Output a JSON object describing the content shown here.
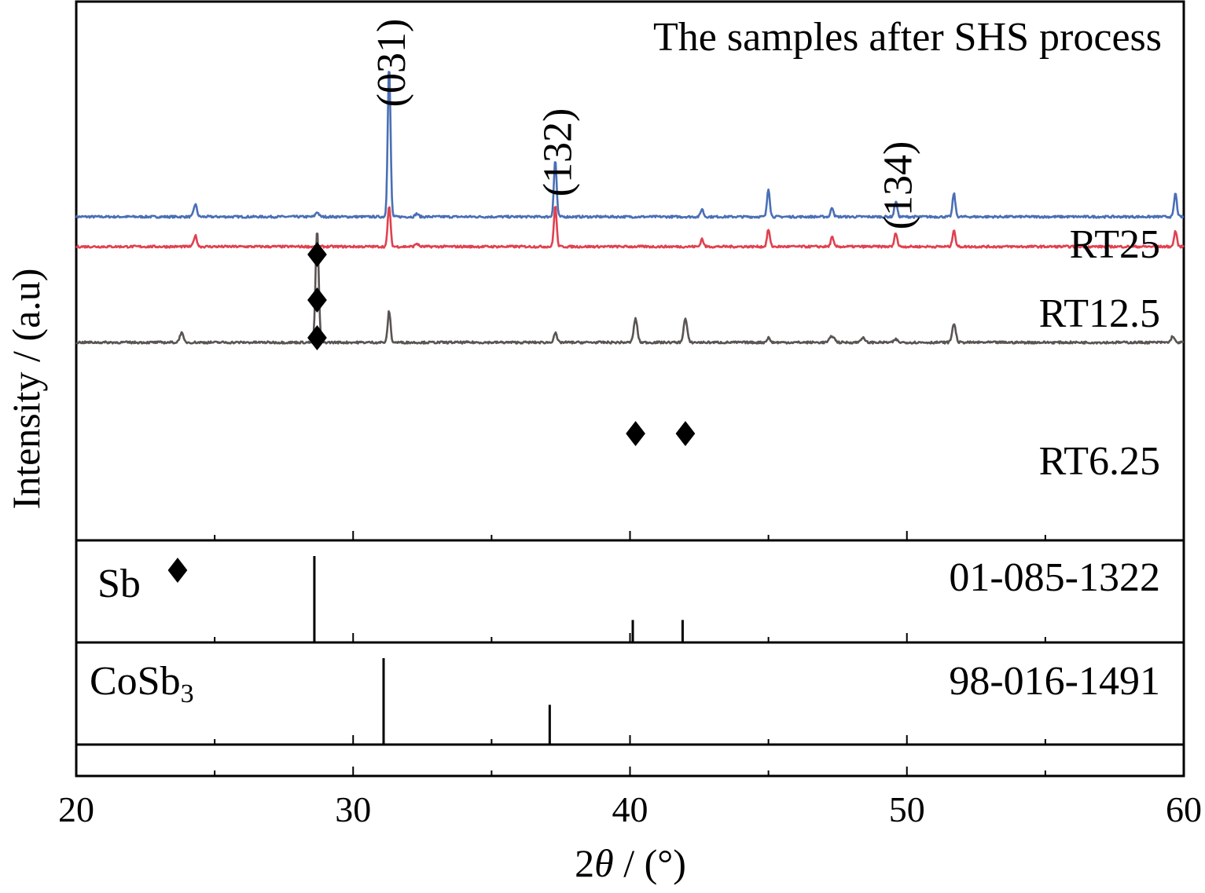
{
  "chart_data": {
    "type": "line",
    "title": "The samples after SHS process",
    "xlabel_parts": [
      "2",
      "θ",
      " / (°)"
    ],
    "ylabel": "Intensity / (a.u)",
    "xlim": [
      20,
      60
    ],
    "xticks": [
      "20",
      "30",
      "40",
      "50",
      "60"
    ],
    "grid": false,
    "peak_labels": [
      {
        "text": "(031)",
        "x": 31.3
      },
      {
        "text": "(132)",
        "x": 37.3
      },
      {
        "text": "(134)",
        "x": 49.6
      }
    ],
    "marker_symbol": "♦",
    "sb_markers": [
      {
        "series": "RT25",
        "x": 28.7
      },
      {
        "series": "RT12.5",
        "x": 28.7
      },
      {
        "series": "RT6.25",
        "x": 28.7
      },
      {
        "series": "RT6.25",
        "x": 40.2
      },
      {
        "series": "RT6.25",
        "x": 42.0
      }
    ],
    "series": [
      {
        "name": "RT25",
        "color": "#4a6fb5",
        "baseline": 4.0,
        "peaks": [
          {
            "x": 24.3,
            "h": 0.8,
            "w": 0.08
          },
          {
            "x": 28.7,
            "h": 0.3,
            "w": 0.08
          },
          {
            "x": 31.3,
            "h": 9.6,
            "w": 0.07
          },
          {
            "x": 32.3,
            "h": 0.2,
            "w": 0.08
          },
          {
            "x": 37.3,
            "h": 3.6,
            "w": 0.07
          },
          {
            "x": 42.6,
            "h": 0.5,
            "w": 0.07
          },
          {
            "x": 45.0,
            "h": 1.8,
            "w": 0.07
          },
          {
            "x": 47.3,
            "h": 0.6,
            "w": 0.07
          },
          {
            "x": 49.6,
            "h": 1.0,
            "w": 0.07
          },
          {
            "x": 51.7,
            "h": 1.5,
            "w": 0.07
          },
          {
            "x": 59.7,
            "h": 1.5,
            "w": 0.07
          }
        ]
      },
      {
        "name": "RT12.5",
        "color": "#e0414f",
        "baseline": 2.1,
        "peaks": [
          {
            "x": 24.3,
            "h": 0.7,
            "w": 0.08
          },
          {
            "x": 31.3,
            "h": 2.6,
            "w": 0.07
          },
          {
            "x": 32.3,
            "h": 0.2,
            "w": 0.08
          },
          {
            "x": 37.3,
            "h": 2.6,
            "w": 0.07
          },
          {
            "x": 42.6,
            "h": 0.5,
            "w": 0.07
          },
          {
            "x": 45.0,
            "h": 1.1,
            "w": 0.07
          },
          {
            "x": 47.3,
            "h": 0.6,
            "w": 0.07
          },
          {
            "x": 49.6,
            "h": 0.9,
            "w": 0.07
          },
          {
            "x": 51.7,
            "h": 1.1,
            "w": 0.07
          },
          {
            "x": 59.7,
            "h": 1.0,
            "w": 0.07
          }
        ]
      },
      {
        "name": "RT6.25",
        "color": "#5a5452",
        "baseline": -4.0,
        "peaks": [
          {
            "x": 23.8,
            "h": 0.6,
            "w": 0.09
          },
          {
            "x": 28.7,
            "h": 7.1,
            "w": 0.08
          },
          {
            "x": 31.3,
            "h": 2.0,
            "w": 0.07
          },
          {
            "x": 37.3,
            "h": 0.6,
            "w": 0.08
          },
          {
            "x": 40.2,
            "h": 1.5,
            "w": 0.09
          },
          {
            "x": 42.0,
            "h": 1.5,
            "w": 0.09
          },
          {
            "x": 45.0,
            "h": 0.3,
            "w": 0.08
          },
          {
            "x": 47.3,
            "h": 0.4,
            "w": 0.12
          },
          {
            "x": 48.4,
            "h": 0.3,
            "w": 0.1
          },
          {
            "x": 49.6,
            "h": 0.2,
            "w": 0.08
          },
          {
            "x": 51.7,
            "h": 1.2,
            "w": 0.09
          },
          {
            "x": 59.6,
            "h": 0.4,
            "w": 0.08
          }
        ]
      }
    ],
    "reference_panels": [
      {
        "label_main": "Sb",
        "label_sub": "",
        "marker": "♦",
        "code": "01-085-1322",
        "lines": [
          {
            "x": 28.6,
            "rel": 100
          },
          {
            "x": 40.1,
            "rel": 26
          },
          {
            "x": 41.9,
            "rel": 26
          }
        ]
      },
      {
        "label_main": "CoSb",
        "label_sub": "3",
        "marker": "",
        "code": "98-016-1491",
        "lines": [
          {
            "x": 31.1,
            "rel": 100
          },
          {
            "x": 37.1,
            "rel": 46
          }
        ]
      }
    ]
  }
}
